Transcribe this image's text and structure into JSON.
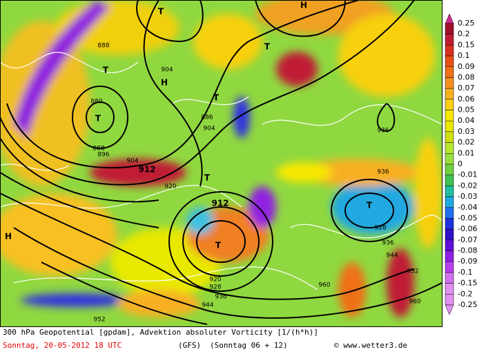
{
  "map": {
    "labels": [
      "T",
      "T",
      "T",
      "T",
      "T",
      "T",
      "T",
      "T",
      "H",
      "H",
      "H",
      "888",
      "880",
      "888",
      "896",
      "904",
      "912",
      "920",
      "904",
      "886",
      "904",
      "912",
      "920",
      "928",
      "936",
      "944",
      "952",
      "960",
      "936",
      "936",
      "928",
      "944",
      "952",
      "960",
      "936"
    ]
  },
  "colorbar": {
    "labels": [
      0.25,
      0.2,
      0.15,
      0.1,
      0.09,
      0.08,
      0.07,
      0.06,
      0.05,
      0.04,
      0.03,
      0.02,
      0.01,
      0,
      -0.01,
      -0.02,
      -0.03,
      -0.04,
      -0.05,
      -0.06,
      -0.07,
      -0.08,
      -0.09,
      -0.1,
      -0.15,
      -0.2,
      -0.25
    ],
    "colors": [
      "#d02c8c",
      "#a0102c",
      "#c01c34",
      "#d83020",
      "#e85018",
      "#f07018",
      "#f49020",
      "#f8b020",
      "#fcd010",
      "#f8e800",
      "#e8e800",
      "#d0e010",
      "#b8e830",
      "#98e040",
      "#70d040",
      "#40c050",
      "#20c0a0",
      "#20a8e0",
      "#2070f0",
      "#2030e0",
      "#3010c8",
      "#6010d8",
      "#9020e8",
      "#b840f0",
      "#d070f0",
      "#e090f0"
    ]
  },
  "footer": {
    "description": "300 hPa Geopotential [gpdam], Advektion absoluter Vorticity [1/(h*h)]",
    "date": "Sonntag, 20-05-2012  18 UTC",
    "model": "(GFS)",
    "run": "(Sonntag 06 + 12)",
    "credit": "© www.wetter3.de"
  }
}
